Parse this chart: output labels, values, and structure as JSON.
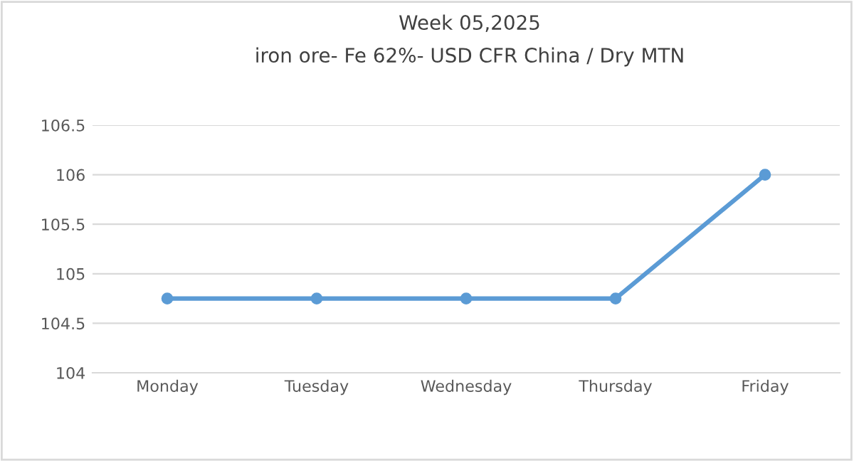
{
  "chart_data": {
    "type": "line",
    "title": "Week 05,2025",
    "subtitle": "iron ore- Fe 62%- USD CFR China / Dry MTN",
    "categories": [
      "Monday",
      "Tuesday",
      "Wednesday",
      "Thursday",
      "Friday"
    ],
    "series": [
      {
        "color": "#5b9bd5",
        "values": [
          104.75,
          104.75,
          104.75,
          104.75,
          106
        ]
      }
    ],
    "ylim": [
      104,
      106.5
    ],
    "yticks": [
      104,
      104.5,
      105,
      105.5,
      106,
      106.5
    ],
    "grid": "y",
    "marker": "circle",
    "line_style": "solid"
  }
}
